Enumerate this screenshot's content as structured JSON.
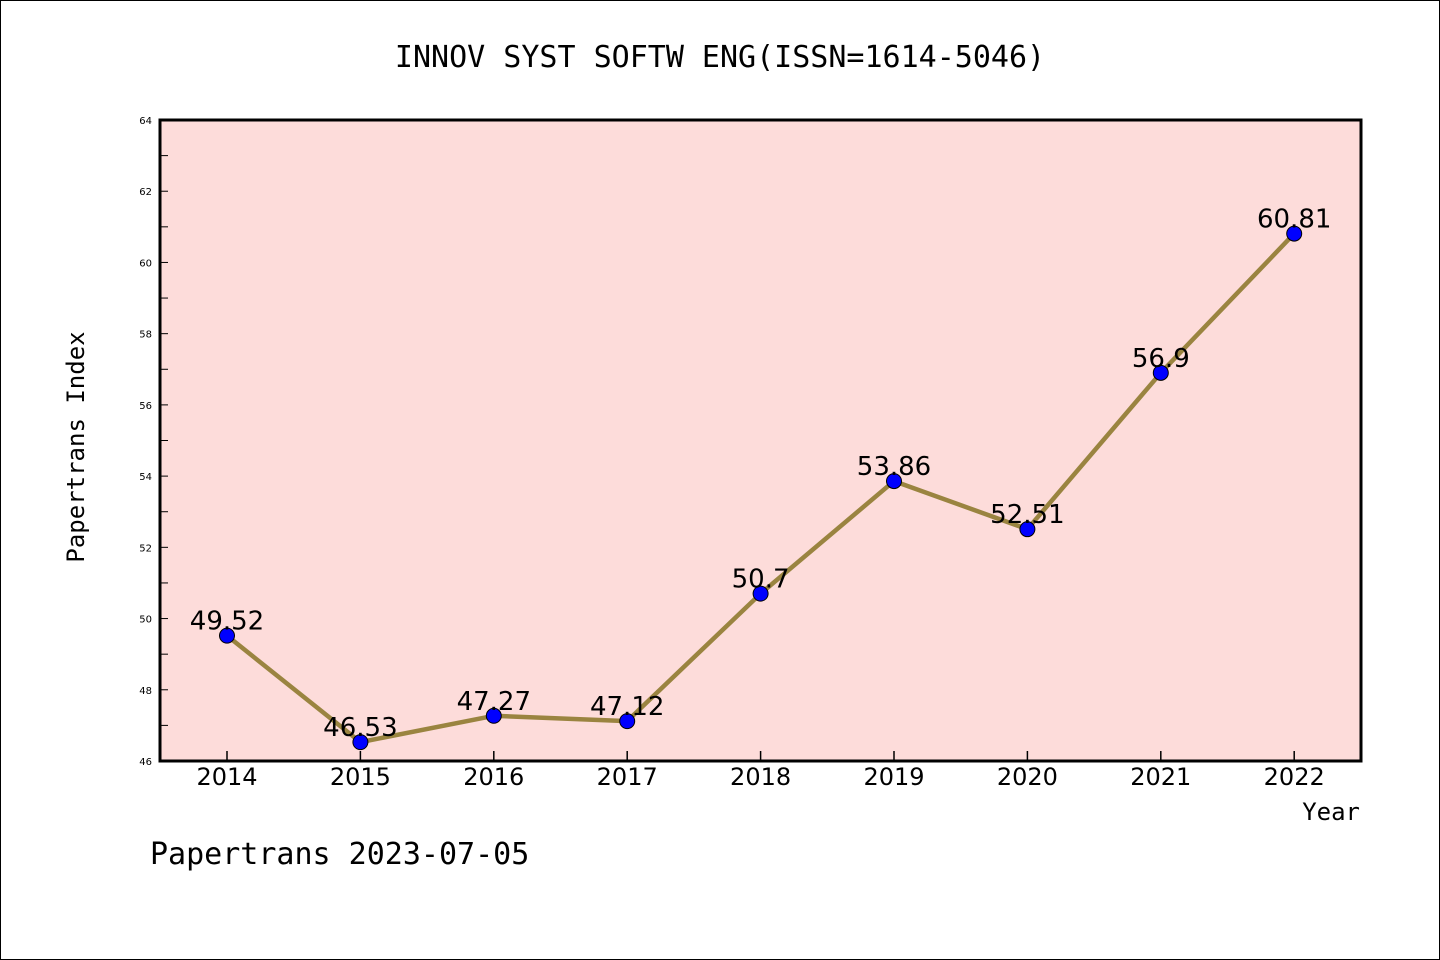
{
  "chart_data": {
    "type": "line",
    "title": "INNOV SYST SOFTW ENG(ISSN=1614-5046)",
    "xlabel": "Year",
    "ylabel": "Papertrans Index",
    "categories": [
      "2014",
      "2015",
      "2016",
      "2017",
      "2018",
      "2019",
      "2020",
      "2021",
      "2022"
    ],
    "series": [
      {
        "values": [
          49.52,
          46.53,
          47.27,
          47.12,
          50.7,
          53.86,
          52.51,
          56.9,
          60.81
        ],
        "labels": [
          "49.52",
          "46.53",
          "47.27",
          "47.12",
          "50.7",
          "53.86",
          "52.51",
          "56.9",
          "60.81"
        ],
        "line_color": "#9a8440",
        "marker_color": "#0000ff"
      }
    ],
    "ylim": [
      46,
      64
    ],
    "yticks": [
      "46",
      "48",
      "50",
      "52",
      "54",
      "56",
      "58",
      "60",
      "62",
      "64"
    ],
    "grid": false,
    "legend": "none",
    "plot_background": "#fddcda"
  },
  "footer": {
    "text": "Papertrans 2023-07-05"
  }
}
